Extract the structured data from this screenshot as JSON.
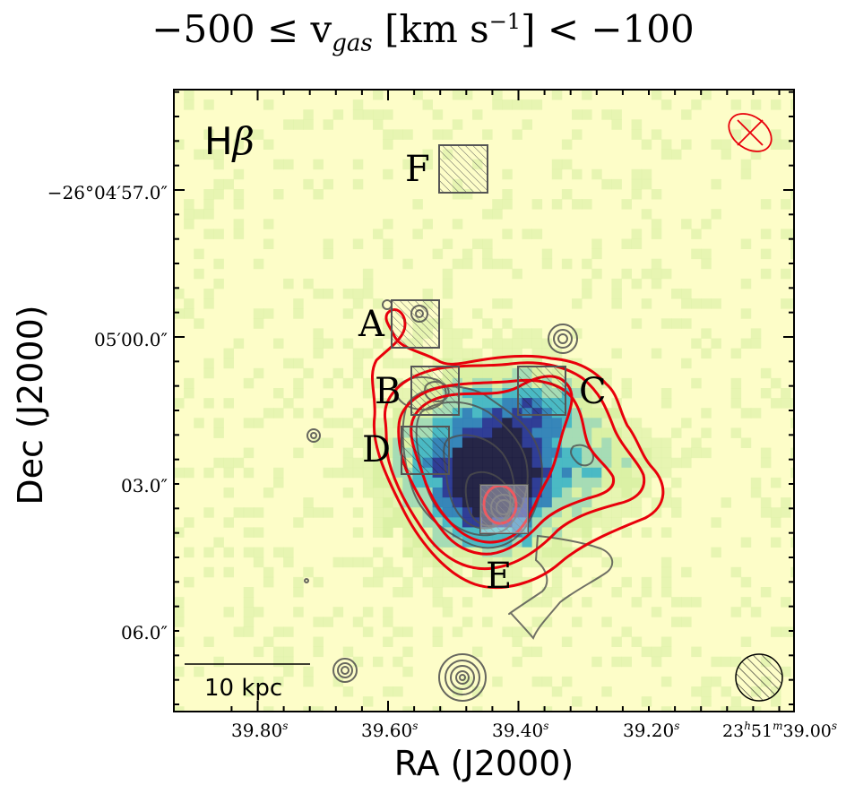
{
  "chart_data": {
    "type": "heatmap",
    "title": "−500 ≤ v_gas [km s⁻¹] < −100",
    "title_parts": {
      "prefix": "−500 ≤ v",
      "subscript": "gas",
      "unit_open": " [km s",
      "superscript": "−1",
      "suffix": "] < −100"
    },
    "xlabel": "RA (J2000)",
    "ylabel": "Dec (J2000)",
    "panel_label": {
      "main": "H",
      "greek": "β"
    },
    "x_ticks": [
      "39.80",
      "39.60",
      "39.40",
      "39.20",
      "23h51m39.00"
    ],
    "x_tick_text": [
      {
        "main": "39.80",
        "sup": "s"
      },
      {
        "main": "39.60",
        "sup": "s"
      },
      {
        "main": "39.40",
        "sup": "s"
      },
      {
        "main": "39.20",
        "sup": "s"
      },
      {
        "main": "23",
        "sup": "h",
        "main2": "51",
        "sup2": "m",
        "main3": "39.00",
        "sup3": "s"
      }
    ],
    "y_ticks": [
      "−26°04′57.0″",
      "05′00.0″",
      "03.0″",
      "06.0″"
    ],
    "regions": [
      "A",
      "B",
      "C",
      "D",
      "E",
      "F"
    ],
    "scale_bar_label": "10 kpc",
    "colormap": [
      "#ffffcc",
      "#d9f0a3",
      "#a1dab4",
      "#41b6c4",
      "#2c7fb8",
      "#253494",
      "#1a1a40"
    ],
    "contour_colors": {
      "red": "#e8000b",
      "gray": "#4d4d4d"
    },
    "beam_icons": [
      "red-ellipse-cross-icon",
      "hatched-circle-icon"
    ]
  }
}
